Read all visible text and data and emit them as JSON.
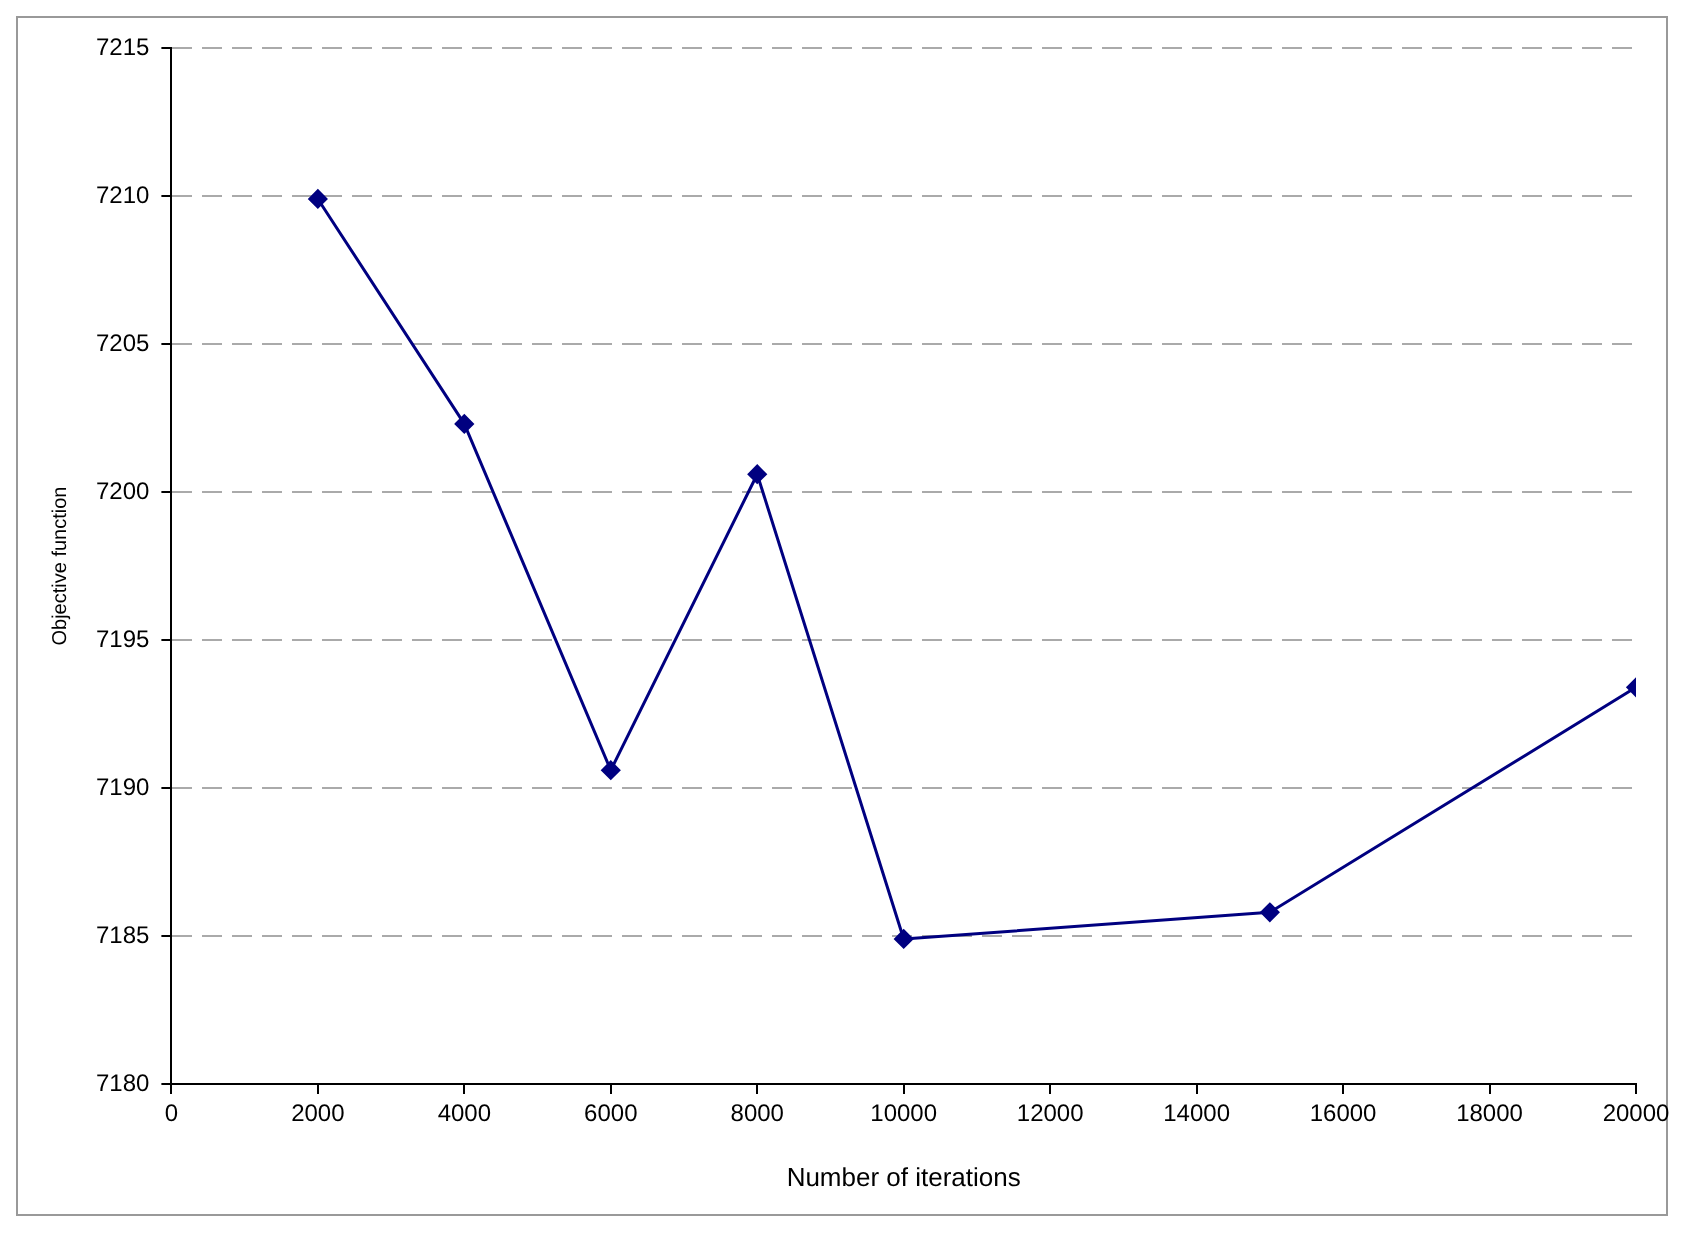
{
  "chart_data": {
    "type": "line",
    "xlabel": "Number of iterations",
    "ylabel": "Objective function",
    "x": [
      2000,
      4000,
      6000,
      8000,
      10000,
      15000,
      20000
    ],
    "series": [
      {
        "color": "#000080",
        "values": [
          7209.9,
          7202.3,
          7190.6,
          7200.6,
          7184.9,
          7185.8,
          7193.4
        ]
      }
    ],
    "xlim": [
      0,
      20000
    ],
    "xticks": [
      0,
      2000,
      4000,
      6000,
      8000,
      10000,
      12000,
      14000,
      16000,
      18000,
      20000
    ],
    "ylim": [
      7180,
      7215
    ],
    "yticks": [
      7180,
      7185,
      7190,
      7195,
      7200,
      7205,
      7210,
      7215
    ],
    "grid": "y",
    "marker": "diamond",
    "line_style": "solid"
  }
}
